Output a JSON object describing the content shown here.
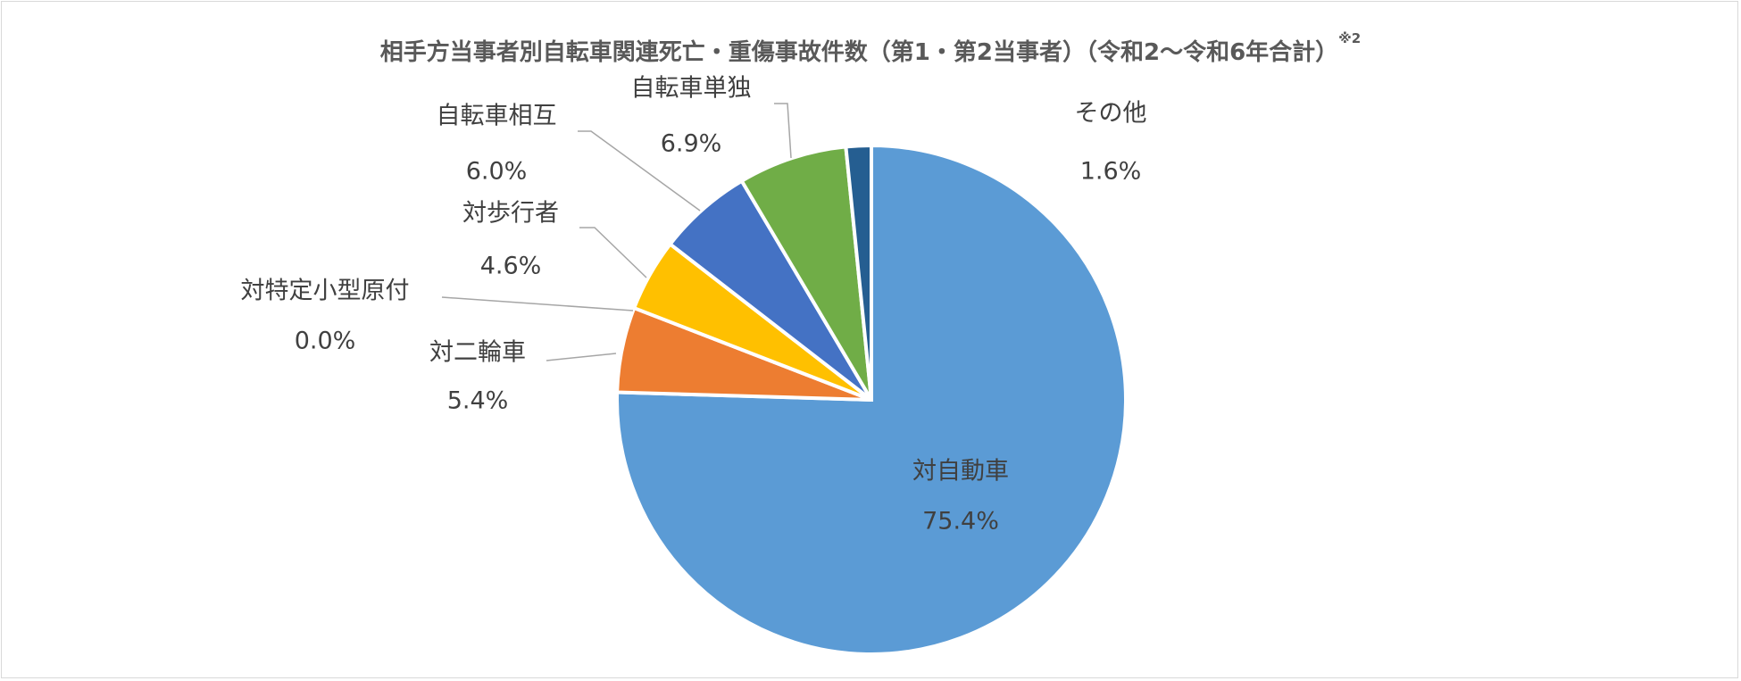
{
  "chart_data": {
    "type": "pie",
    "title": "相手方当事者別自転車関連死亡・重傷事故件数（第1・第2当事者）（令和2～令和6年合計）",
    "title_note": "※2",
    "start_angle": "12 o'clock",
    "direction": "clockwise",
    "slices": [
      {
        "label": "対自動車",
        "value": 75.4,
        "display": "75.4%",
        "color": "#5B9BD5"
      },
      {
        "label": "対二輪車",
        "value": 5.4,
        "display": "5.4%",
        "color": "#ED7D31"
      },
      {
        "label": "対特定小型原付",
        "value": 0.0,
        "display": "0.0%",
        "color": "#A5A5A5"
      },
      {
        "label": "対歩行者",
        "value": 4.6,
        "display": "4.6%",
        "color": "#FFC000"
      },
      {
        "label": "自転車相互",
        "value": 6.0,
        "display": "6.0%",
        "color": "#4472C4"
      },
      {
        "label": "自転車単独",
        "value": 6.9,
        "display": "6.9%",
        "color": "#70AD47"
      },
      {
        "label": "その他",
        "value": 1.6,
        "display": "1.6%",
        "color": "#255E91"
      }
    ]
  }
}
